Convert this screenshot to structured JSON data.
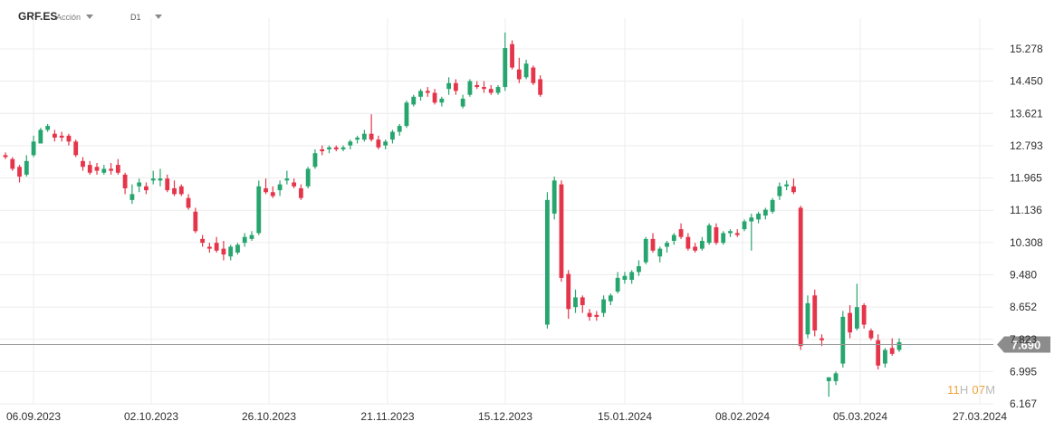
{
  "header": {
    "symbol": "GRF.ES",
    "asset_type": "Acción",
    "timeframe": "D1"
  },
  "current_price_label": "7.690",
  "countdown": {
    "hours": "11",
    "hours_unit": "H",
    "minutes": "07",
    "minutes_unit": "M"
  },
  "colors": {
    "up": "#27a56e",
    "down": "#e5354a",
    "price_line": "#9a9a9a",
    "price_tag": "#8c8c8c",
    "grid": "#ececec"
  },
  "chart_data": {
    "type": "candlestick",
    "y_ticks": [
      "15.278",
      "14.450",
      "13.621",
      "12.793",
      "11.965",
      "11.136",
      "10.308",
      "9.480",
      "8.652",
      "7.823",
      "6.995",
      "6.167"
    ],
    "x_ticks": [
      "06.09.2023",
      "02.10.2023",
      "26.10.2023",
      "21.11.2023",
      "15.12.2023",
      "15.01.2024",
      "08.02.2024",
      "05.03.2024",
      "27.03.2024"
    ],
    "ylim": [
      6.1,
      16.0
    ],
    "current_price": 7.69,
    "grid": true,
    "candles": [
      [
        12.55,
        12.62,
        12.45,
        12.5
      ],
      [
        12.45,
        12.5,
        12.15,
        12.2
      ],
      [
        12.25,
        12.3,
        11.85,
        12.0
      ],
      [
        12.05,
        12.55,
        12.0,
        12.4
      ],
      [
        12.55,
        13.05,
        12.5,
        12.9
      ],
      [
        12.85,
        13.25,
        12.85,
        13.2
      ],
      [
        13.2,
        13.35,
        13.15,
        13.3
      ],
      [
        13.1,
        13.2,
        12.9,
        13.0
      ],
      [
        13.05,
        13.15,
        12.9,
        13.0
      ],
      [
        13.05,
        13.1,
        12.8,
        12.9
      ],
      [
        12.9,
        12.95,
        12.5,
        12.55
      ],
      [
        12.4,
        12.5,
        12.15,
        12.25
      ],
      [
        12.3,
        12.4,
        12.05,
        12.1
      ],
      [
        12.25,
        12.35,
        12.05,
        12.15
      ],
      [
        12.1,
        12.3,
        12.05,
        12.2
      ],
      [
        12.2,
        12.35,
        12.05,
        12.15
      ],
      [
        12.3,
        12.45,
        12.05,
        12.1
      ],
      [
        12.05,
        12.1,
        11.55,
        11.7
      ],
      [
        11.4,
        11.8,
        11.3,
        11.55
      ],
      [
        11.75,
        11.95,
        11.6,
        11.85
      ],
      [
        11.75,
        11.85,
        11.55,
        11.65
      ],
      [
        11.9,
        12.15,
        11.8,
        11.95
      ],
      [
        11.9,
        12.2,
        11.75,
        11.95
      ],
      [
        11.95,
        12.05,
        11.6,
        11.65
      ],
      [
        11.7,
        11.9,
        11.5,
        11.55
      ],
      [
        11.75,
        11.8,
        11.5,
        11.55
      ],
      [
        11.45,
        11.55,
        11.15,
        11.2
      ],
      [
        11.1,
        11.2,
        10.55,
        10.6
      ],
      [
        10.4,
        10.5,
        10.2,
        10.3
      ],
      [
        10.2,
        10.3,
        10.05,
        10.15
      ],
      [
        10.3,
        10.45,
        10.05,
        10.1
      ],
      [
        10.15,
        10.35,
        9.85,
        10.0
      ],
      [
        9.95,
        10.25,
        9.85,
        10.2
      ],
      [
        10.05,
        10.3,
        10.0,
        10.25
      ],
      [
        10.3,
        10.55,
        10.2,
        10.45
      ],
      [
        10.4,
        10.6,
        10.35,
        10.5
      ],
      [
        10.55,
        11.9,
        10.5,
        11.75
      ],
      [
        11.7,
        11.95,
        11.55,
        11.6
      ],
      [
        11.6,
        11.75,
        11.45,
        11.5
      ],
      [
        11.65,
        11.9,
        11.5,
        11.8
      ],
      [
        11.9,
        12.15,
        11.8,
        11.95
      ],
      [
        11.85,
        11.95,
        11.7,
        11.75
      ],
      [
        11.7,
        11.8,
        11.4,
        11.45
      ],
      [
        11.75,
        12.25,
        11.7,
        12.2
      ],
      [
        12.25,
        12.7,
        12.2,
        12.6
      ],
      [
        12.7,
        12.8,
        12.55,
        12.65
      ],
      [
        12.7,
        12.8,
        12.6,
        12.75
      ],
      [
        12.75,
        12.8,
        12.65,
        12.7
      ],
      [
        12.7,
        12.8,
        12.65,
        12.75
      ],
      [
        12.8,
        12.95,
        12.7,
        12.9
      ],
      [
        12.95,
        13.05,
        12.85,
        13.0
      ],
      [
        12.95,
        13.2,
        12.9,
        13.1
      ],
      [
        13.1,
        13.6,
        12.9,
        12.95
      ],
      [
        12.95,
        13.05,
        12.7,
        12.75
      ],
      [
        12.8,
        12.95,
        12.7,
        12.9
      ],
      [
        12.95,
        13.2,
        12.85,
        13.15
      ],
      [
        13.15,
        13.35,
        13.05,
        13.3
      ],
      [
        13.3,
        13.95,
        13.25,
        13.9
      ],
      [
        13.85,
        14.1,
        13.8,
        14.05
      ],
      [
        14.05,
        14.25,
        13.95,
        14.2
      ],
      [
        14.2,
        14.3,
        14.05,
        14.15
      ],
      [
        14.15,
        14.25,
        13.85,
        13.9
      ],
      [
        13.9,
        14.05,
        13.8,
        14.0
      ],
      [
        14.25,
        14.55,
        14.1,
        14.4
      ],
      [
        14.4,
        14.5,
        14.1,
        14.2
      ],
      [
        13.8,
        14.1,
        13.75,
        14.0
      ],
      [
        14.1,
        14.5,
        14.05,
        14.45
      ],
      [
        14.35,
        14.45,
        14.25,
        14.3
      ],
      [
        14.3,
        14.45,
        14.15,
        14.25
      ],
      [
        14.25,
        14.35,
        14.1,
        14.15
      ],
      [
        14.15,
        14.35,
        14.1,
        14.3
      ],
      [
        14.3,
        15.7,
        14.2,
        15.3
      ],
      [
        15.4,
        15.5,
        14.75,
        14.8
      ],
      [
        14.75,
        15.05,
        14.4,
        14.5
      ],
      [
        14.55,
        15.0,
        14.5,
        14.9
      ],
      [
        14.8,
        14.85,
        14.35,
        14.4
      ],
      [
        14.5,
        14.6,
        14.05,
        14.1
      ],
      [
        8.2,
        11.6,
        8.1,
        11.4
      ],
      [
        11.05,
        12.0,
        10.9,
        11.9
      ],
      [
        11.8,
        11.9,
        9.3,
        9.4
      ],
      [
        9.5,
        9.6,
        8.35,
        8.6
      ],
      [
        8.65,
        9.1,
        8.5,
        8.9
      ],
      [
        8.9,
        8.95,
        8.5,
        8.7
      ],
      [
        8.5,
        8.6,
        8.3,
        8.4
      ],
      [
        8.45,
        8.55,
        8.3,
        8.4
      ],
      [
        8.5,
        8.95,
        8.4,
        8.85
      ],
      [
        8.8,
        9.0,
        8.7,
        8.95
      ],
      [
        9.05,
        9.55,
        9.0,
        9.4
      ],
      [
        9.35,
        9.55,
        9.25,
        9.45
      ],
      [
        9.35,
        9.6,
        9.25,
        9.55
      ],
      [
        9.55,
        9.85,
        9.45,
        9.7
      ],
      [
        9.8,
        10.45,
        9.75,
        10.4
      ],
      [
        10.4,
        10.55,
        10.05,
        10.1
      ],
      [
        9.95,
        10.2,
        9.8,
        10.15
      ],
      [
        10.2,
        10.35,
        10.05,
        10.3
      ],
      [
        10.35,
        10.55,
        10.25,
        10.5
      ],
      [
        10.65,
        10.8,
        10.4,
        10.45
      ],
      [
        10.45,
        10.55,
        10.1,
        10.15
      ],
      [
        10.2,
        10.3,
        10.05,
        10.1
      ],
      [
        10.15,
        10.45,
        10.1,
        10.35
      ],
      [
        10.3,
        10.8,
        10.25,
        10.75
      ],
      [
        10.7,
        10.8,
        10.25,
        10.3
      ],
      [
        10.3,
        10.6,
        10.25,
        10.55
      ],
      [
        10.55,
        10.65,
        10.45,
        10.6
      ],
      [
        10.55,
        10.65,
        10.45,
        10.5
      ],
      [
        10.65,
        10.9,
        10.6,
        10.85
      ],
      [
        10.85,
        11.05,
        10.1,
        10.95
      ],
      [
        10.9,
        11.1,
        10.8,
        11.05
      ],
      [
        11.0,
        11.2,
        10.9,
        11.15
      ],
      [
        11.1,
        11.45,
        11.05,
        11.4
      ],
      [
        11.5,
        11.85,
        11.4,
        11.75
      ],
      [
        11.75,
        11.9,
        11.65,
        11.8
      ],
      [
        11.75,
        11.95,
        11.55,
        11.6
      ],
      [
        11.2,
        11.25,
        7.55,
        7.65
      ],
      [
        7.95,
        8.95,
        7.85,
        8.75
      ],
      [
        8.95,
        9.1,
        7.9,
        8.05
      ],
      [
        7.85,
        7.95,
        7.65,
        7.8
      ],
      [
        6.75,
        6.8,
        6.35,
        6.85
      ],
      [
        6.75,
        7.0,
        6.65,
        6.95
      ],
      [
        7.2,
        8.55,
        7.1,
        8.4
      ],
      [
        8.5,
        8.7,
        7.85,
        8.0
      ],
      [
        8.1,
        9.25,
        8.05,
        8.65
      ],
      [
        8.7,
        8.75,
        8.1,
        8.2
      ],
      [
        8.05,
        8.1,
        7.8,
        7.85
      ],
      [
        7.8,
        7.95,
        7.05,
        7.15
      ],
      [
        7.2,
        7.6,
        7.1,
        7.55
      ],
      [
        7.6,
        7.85,
        7.4,
        7.45
      ],
      [
        7.55,
        7.85,
        7.5,
        7.75
      ]
    ]
  }
}
